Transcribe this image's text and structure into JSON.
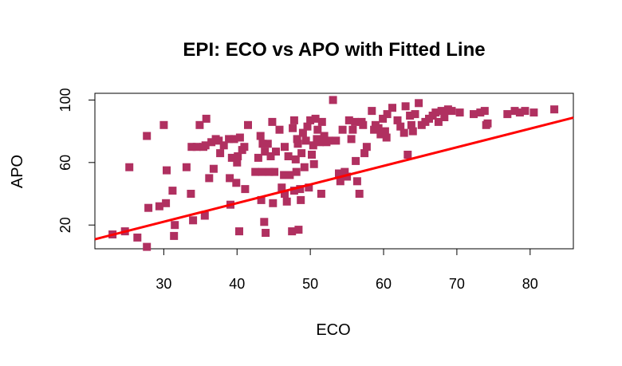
{
  "chart_data": {
    "type": "scatter",
    "title": "EPI: ECO vs APO with Fitted Line",
    "xlabel": "ECO",
    "ylabel": "APO",
    "xlim": [
      20.6,
      85.9
    ],
    "ylim": [
      4.8,
      104.3
    ],
    "xticks": [
      "30",
      "40",
      "50",
      "60",
      "70",
      "80"
    ],
    "yticks": [
      "20",
      "60",
      "100"
    ],
    "marker_color": "#B03060",
    "line_color": "#FF0000",
    "fit_line": {
      "x": [
        20.6,
        85.9
      ],
      "y": [
        10.9,
        88.7
      ]
    },
    "points": [
      [
        23,
        14
      ],
      [
        24.7,
        16
      ],
      [
        26.4,
        12
      ],
      [
        27.7,
        6
      ],
      [
        25.3,
        57
      ],
      [
        27.9,
        31
      ],
      [
        27.7,
        77
      ],
      [
        29.4,
        32
      ],
      [
        30,
        84
      ],
      [
        30.3,
        34
      ],
      [
        30.4,
        55
      ],
      [
        31.2,
        42
      ],
      [
        31.4,
        13
      ],
      [
        31.5,
        20
      ],
      [
        33.1,
        57
      ],
      [
        33.7,
        40
      ],
      [
        33.8,
        70
      ],
      [
        34,
        23
      ],
      [
        34.5,
        70
      ],
      [
        34.9,
        84
      ],
      [
        35.4,
        70
      ],
      [
        35.6,
        26
      ],
      [
        35.7,
        71
      ],
      [
        35.8,
        88
      ],
      [
        36.2,
        50
      ],
      [
        36.5,
        73
      ],
      [
        36.8,
        56
      ],
      [
        37.1,
        75
      ],
      [
        37.5,
        74
      ],
      [
        37.7,
        66
      ],
      [
        38.2,
        71
      ],
      [
        38.9,
        75
      ],
      [
        39,
        50
      ],
      [
        39.1,
        33
      ],
      [
        39.3,
        63
      ],
      [
        39.6,
        75
      ],
      [
        39.9,
        47
      ],
      [
        40.1,
        64
      ],
      [
        40,
        60
      ],
      [
        40.3,
        16
      ],
      [
        40.4,
        76
      ],
      [
        40.7,
        68
      ],
      [
        41,
        70
      ],
      [
        41.1,
        43
      ],
      [
        41.5,
        84
      ],
      [
        42.5,
        54
      ],
      [
        42.9,
        63
      ],
      [
        43.2,
        77
      ],
      [
        43.3,
        36
      ],
      [
        43.4,
        54
      ],
      [
        43.5,
        72
      ],
      [
        43.7,
        22
      ],
      [
        43.8,
        67
      ],
      [
        43.9,
        15
      ],
      [
        44.2,
        72
      ],
      [
        44.4,
        54
      ],
      [
        44.6,
        64
      ],
      [
        44.8,
        86
      ],
      [
        44.9,
        34
      ],
      [
        45.1,
        54
      ],
      [
        45.3,
        67
      ],
      [
        45.8,
        81
      ],
      [
        46.1,
        44
      ],
      [
        46.4,
        52
      ],
      [
        46.5,
        70
      ],
      [
        46.5,
        40
      ],
      [
        46.8,
        35
      ],
      [
        47,
        64
      ],
      [
        47.2,
        52
      ],
      [
        47.5,
        16
      ],
      [
        47.6,
        82
      ],
      [
        47.8,
        87
      ],
      [
        47.8,
        42
      ],
      [
        48,
        62
      ],
      [
        48.1,
        54
      ],
      [
        48.2,
        75
      ],
      [
        48.3,
        72
      ],
      [
        48.4,
        17
      ],
      [
        48.6,
        43
      ],
      [
        48.7,
        36
      ],
      [
        48.8,
        66
      ],
      [
        49,
        79
      ],
      [
        49.2,
        57
      ],
      [
        49.4,
        74
      ],
      [
        49.6,
        83
      ],
      [
        49.8,
        44
      ],
      [
        50,
        87
      ],
      [
        50.2,
        65
      ],
      [
        50.4,
        71
      ],
      [
        50.5,
        59
      ],
      [
        50.7,
        88
      ],
      [
        50.9,
        75
      ],
      [
        51,
        81
      ],
      [
        51.3,
        73
      ],
      [
        51.5,
        40
      ],
      [
        51.6,
        86
      ],
      [
        51.9,
        77
      ],
      [
        52.2,
        73
      ],
      [
        52.5,
        74
      ],
      [
        53.1,
        100
      ],
      [
        53.5,
        74
      ],
      [
        53.9,
        53
      ],
      [
        54.1,
        48
      ],
      [
        54.4,
        81
      ],
      [
        54.7,
        54
      ],
      [
        55,
        51
      ],
      [
        55.3,
        87
      ],
      [
        55.6,
        75
      ],
      [
        55.8,
        81
      ],
      [
        56.1,
        86
      ],
      [
        56.2,
        61
      ],
      [
        56.4,
        48
      ],
      [
        56.7,
        40
      ],
      [
        57,
        86
      ],
      [
        57.2,
        84
      ],
      [
        57.4,
        66
      ],
      [
        57.7,
        70
      ],
      [
        58.4,
        93
      ],
      [
        58.7,
        81
      ],
      [
        58.9,
        84
      ],
      [
        59.3,
        82
      ],
      [
        59.6,
        78
      ],
      [
        59.9,
        88
      ],
      [
        60.2,
        80
      ],
      [
        60.4,
        76
      ],
      [
        60.5,
        91
      ],
      [
        61.2,
        95
      ],
      [
        61.9,
        87
      ],
      [
        62.3,
        83
      ],
      [
        62.8,
        79
      ],
      [
        63,
        96
      ],
      [
        63.3,
        65
      ],
      [
        63.6,
        90
      ],
      [
        63.8,
        84
      ],
      [
        64,
        80
      ],
      [
        64.3,
        91
      ],
      [
        64.8,
        98
      ],
      [
        65.2,
        84
      ],
      [
        65.7,
        86
      ],
      [
        66.2,
        88
      ],
      [
        66.7,
        90
      ],
      [
        67.1,
        92
      ],
      [
        67.5,
        86
      ],
      [
        67.9,
        93
      ],
      [
        68.3,
        89
      ],
      [
        68.8,
        94
      ],
      [
        69.3,
        93
      ],
      [
        70.4,
        92
      ],
      [
        72.3,
        91
      ],
      [
        73.2,
        92
      ],
      [
        73.8,
        93
      ],
      [
        74,
        84
      ],
      [
        74.2,
        85
      ],
      [
        76.9,
        91
      ],
      [
        77.9,
        93
      ],
      [
        78.6,
        92
      ],
      [
        79.3,
        93
      ],
      [
        80.5,
        92
      ],
      [
        83.3,
        94
      ]
    ]
  }
}
